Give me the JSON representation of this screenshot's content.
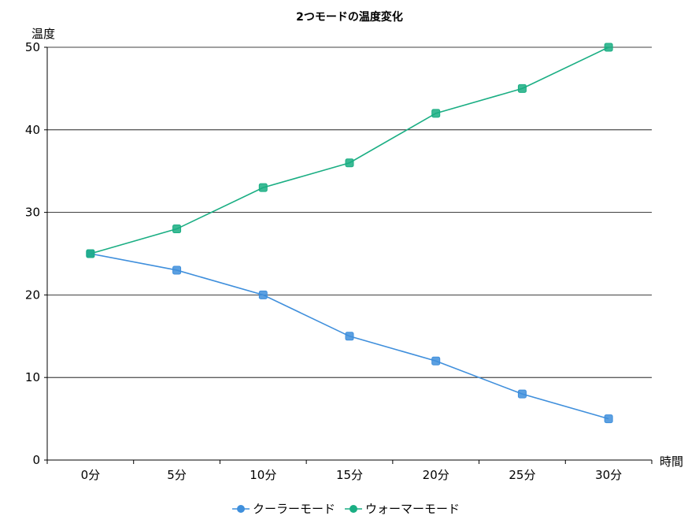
{
  "chart_data": {
    "type": "line",
    "title": "2つモードの温度変化",
    "xlabel": "時間",
    "ylabel": "温度",
    "categories": [
      "0分",
      "5分",
      "10分",
      "15分",
      "20分",
      "25分",
      "30分"
    ],
    "ylim": [
      0,
      50
    ],
    "yticks": [
      "0",
      "10",
      "20",
      "30",
      "40",
      "50"
    ],
    "grid": true,
    "legend_position": "bottom",
    "series": [
      {
        "name": "クーラーモード",
        "color": "#3f8fdc",
        "values": [
          25,
          23,
          20,
          15,
          12,
          8,
          5
        ]
      },
      {
        "name": "ウォーマーモード",
        "color": "#1aae83",
        "values": [
          25,
          28,
          33,
          36,
          42,
          45,
          50
        ]
      }
    ]
  }
}
